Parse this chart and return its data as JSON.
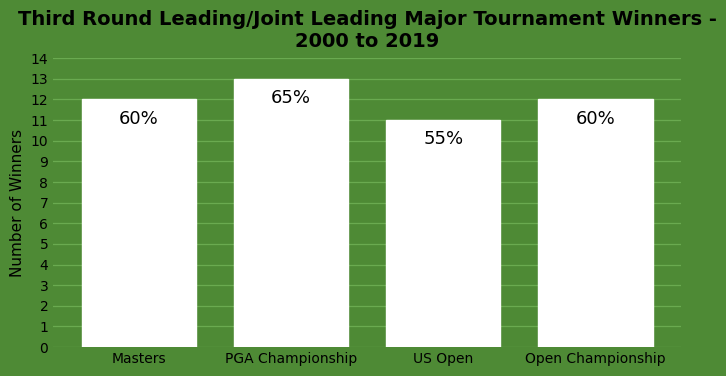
{
  "title": "Third Round Leading/Joint Leading Major Tournament Winners -\n2000 to 2019",
  "categories": [
    "Masters",
    "PGA Championship",
    "US Open",
    "Open Championship"
  ],
  "values": [
    12,
    13,
    11,
    12
  ],
  "labels": [
    "60%",
    "65%",
    "55%",
    "60%"
  ],
  "bar_color": "#ffffff",
  "background_color": "#4e8a35",
  "text_color": "#000000",
  "ylabel": "Number of Winners",
  "ylim": [
    0,
    14
  ],
  "yticks": [
    0,
    1,
    2,
    3,
    4,
    5,
    6,
    7,
    8,
    9,
    10,
    11,
    12,
    13,
    14
  ],
  "title_fontsize": 14,
  "label_fontsize": 13,
  "axis_label_fontsize": 11,
  "tick_fontsize": 10,
  "grid_color": "#6aaa50",
  "bar_width": 0.75,
  "label_yoffset": 0.5
}
